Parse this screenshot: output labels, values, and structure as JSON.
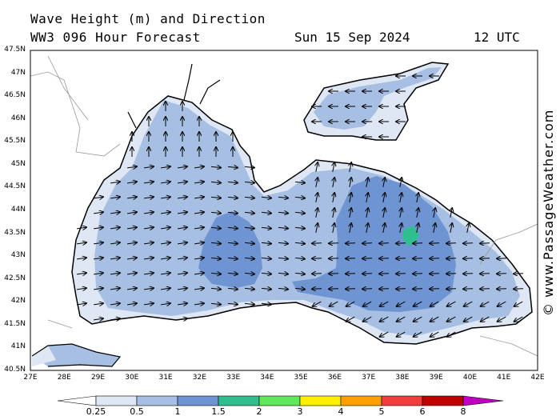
{
  "header": {
    "line1": "Wave Height (m) and Direction",
    "model": "WW3 096 Hour Forecast",
    "date": "Sun 15 Sep 2024",
    "time": "12 UTC"
  },
  "watermark": "© www.PassageWeather.com",
  "map": {
    "lat_labels": [
      "47.5N",
      "47N",
      "46.5N",
      "46N",
      "45.5N",
      "45N",
      "44.5N",
      "44N",
      "43.5N",
      "43N",
      "42.5N",
      "42N",
      "41.5N",
      "41N",
      "40.5N"
    ],
    "lon_labels": [
      "27E",
      "28E",
      "29E",
      "30E",
      "31E",
      "32E",
      "33E",
      "34E",
      "35E",
      "36E",
      "37E",
      "38E",
      "39E",
      "40E",
      "41E",
      "42E"
    ],
    "lat_range": [
      40.5,
      47.5
    ],
    "lon_range": [
      27,
      42
    ],
    "colors": {
      "h0": "#ffffff",
      "h025": "#dfe7f4",
      "h05": "#a6bfe3",
      "h1": "#6f94d2",
      "h15": "#2fbf8f",
      "land": "#ffffff",
      "coast": "#000000",
      "border": "#999999",
      "arrow": "#000000"
    }
  },
  "colorbar": {
    "labels": [
      "0.25",
      "0.5",
      "1",
      "1.5",
      "2",
      "3",
      "4",
      "5",
      "6",
      "8"
    ],
    "colors": [
      "#dfe7f4",
      "#a6bfe3",
      "#6f94d2",
      "#2fbf8f",
      "#5fe85a",
      "#fff000",
      "#ffa000",
      "#f03c3c",
      "#c00000",
      "#c000c0"
    ]
  }
}
